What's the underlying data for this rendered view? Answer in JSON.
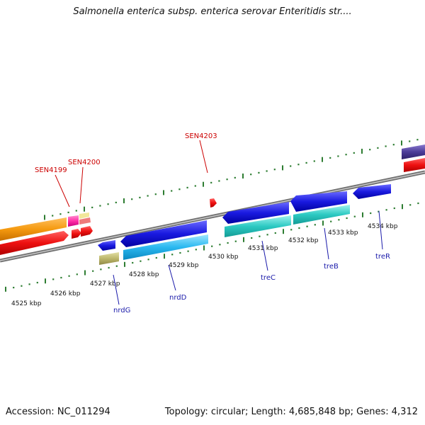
{
  "title": "Salmonella enterica subsp. enterica serovar Enteritidis str....",
  "footer": {
    "accession": "Accession: NC_011294",
    "summary": "Topology: circular; Length: 4,685,848 bp; Genes: 4,312"
  },
  "kbp_labels": [
    "4525 kbp",
    "4526 kbp",
    "4527 kbp",
    "4528 kbp",
    "4529 kbp",
    "4530 kbp",
    "4531 kbp",
    "4532 kbp",
    "4533 kbp",
    "4534 kbp"
  ],
  "forward_genes": [
    "SEN4199",
    "SEN4200",
    "SEN4203"
  ],
  "reverse_genes": [
    "nrdG",
    "nrdD",
    "treC",
    "treB",
    "treR"
  ],
  "colors": {
    "forward_label": "#cc0000",
    "reverse_label": "#1a1aaa",
    "backbone": "#8a8a8a",
    "tick": "#2e7d32"
  }
}
